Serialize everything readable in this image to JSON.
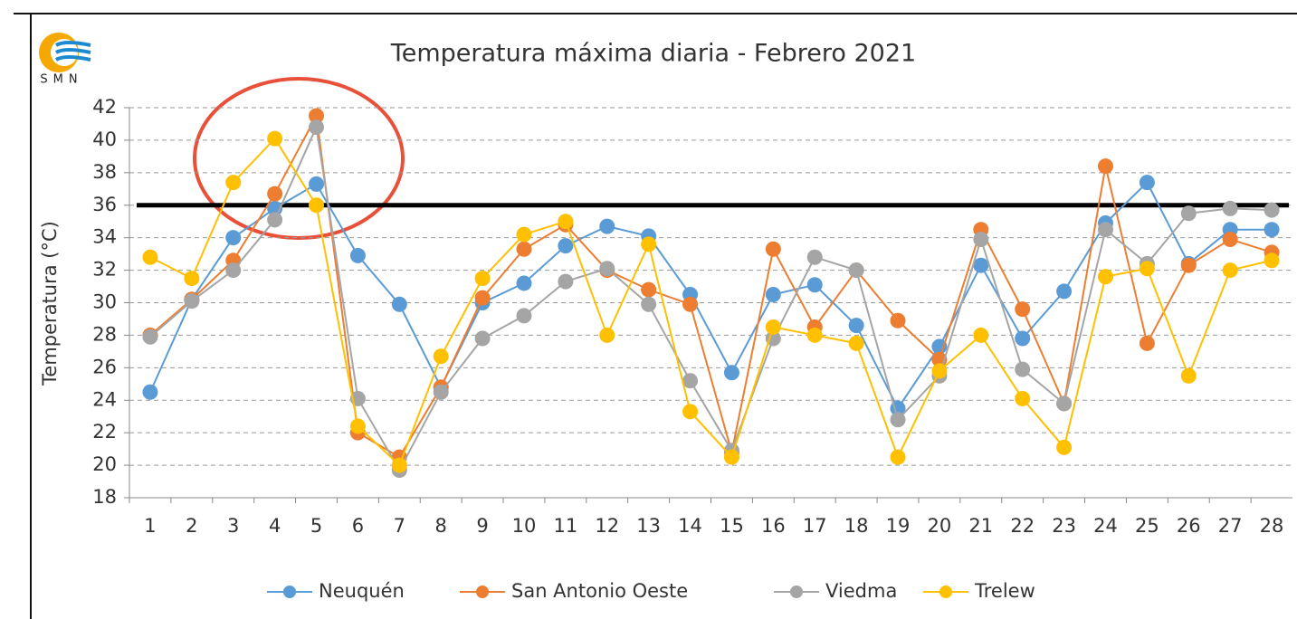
{
  "chart_data": {
    "type": "line",
    "title": "Temperatura máxima diaria - Febrero 2021",
    "logo_text": "SMN",
    "ylabel": "Temperatura (°C)",
    "categories": [
      "1",
      "2",
      "3",
      "4",
      "5",
      "6",
      "7",
      "8",
      "9",
      "10",
      "11",
      "12",
      "13",
      "14",
      "15",
      "16",
      "17",
      "18",
      "19",
      "20",
      "21",
      "22",
      "23",
      "24",
      "25",
      "26",
      "27",
      "28"
    ],
    "series": [
      {
        "name": "Neuquén",
        "color": "#5b9bd5",
        "values": [
          24.5,
          30.2,
          34,
          35.8,
          37.3,
          32.9,
          29.9,
          24.8,
          30,
          31.2,
          33.5,
          34.7,
          34.1,
          30.5,
          25.7,
          30.5,
          31.1,
          28.6,
          23.5,
          27.3,
          32.3,
          27.8,
          30.7,
          34.9,
          37.4,
          32.4,
          34.5,
          34.5
        ]
      },
      {
        "name": "San Antonio Oeste",
        "color": "#ed7d31",
        "values": [
          28,
          30.2,
          32.6,
          36.7,
          41.5,
          22,
          20.5,
          24.8,
          30.3,
          33.3,
          34.8,
          32,
          30.8,
          29.9,
          20.8,
          33.3,
          28.5,
          32,
          28.9,
          26.5,
          34.5,
          29.6,
          23.8,
          38.4,
          27.5,
          32.3,
          33.9,
          33.1
        ]
      },
      {
        "name": "Viedma",
        "color": "#a5a5a5",
        "values": [
          27.9,
          30.1,
          32,
          35.1,
          40.8,
          24.1,
          19.7,
          24.5,
          27.8,
          29.2,
          31.3,
          32.1,
          29.9,
          25.2,
          20.9,
          27.8,
          32.8,
          32,
          22.8,
          25.5,
          33.9,
          25.9,
          23.8,
          34.5,
          32.4,
          35.5,
          35.8,
          35.7
        ]
      },
      {
        "name": "Trelew",
        "color": "#ffc000",
        "values": [
          32.8,
          31.5,
          37.4,
          40.1,
          36,
          22.4,
          20,
          26.7,
          31.5,
          34.2,
          35,
          28,
          33.6,
          23.3,
          20.5,
          28.5,
          28,
          27.5,
          20.5,
          25.8,
          28,
          24.1,
          21.1,
          31.6,
          32.1,
          25.5,
          32,
          32.6
        ]
      }
    ],
    "threshold": 36,
    "ylim": [
      18,
      42
    ],
    "yticks": [
      18,
      20,
      22,
      24,
      26,
      28,
      30,
      32,
      34,
      36,
      38,
      40,
      42
    ],
    "grid": true,
    "legend": "bottom"
  }
}
